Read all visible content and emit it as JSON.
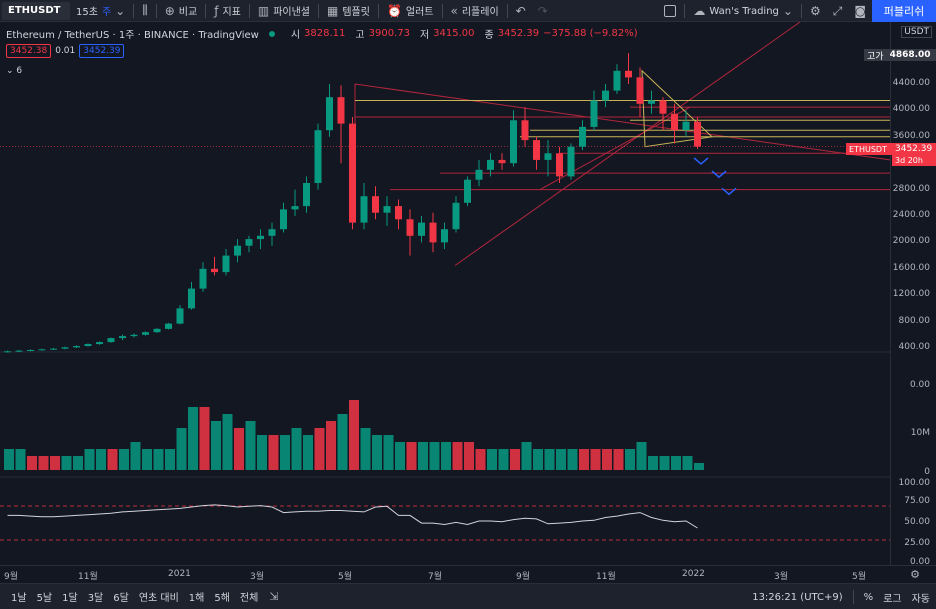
{
  "toolbar": {
    "symbol": "ETHUSDT",
    "interval": "15초",
    "interval_extra": "주",
    "compare": "비교",
    "indicators": "지표",
    "financials": "파이낸셜",
    "templates": "템플릿",
    "alert": "얼러트",
    "replay": "리플레이",
    "layout_name": "Wan's Trading",
    "publish": "퍼블리쉬"
  },
  "legend": {
    "title": "Ethereum / TetherUS · 1주 · BINANCE · TradingView",
    "open_label": "시",
    "open": "3828.11",
    "high_label": "고",
    "high": "3900.73",
    "low_label": "저",
    "low": "3415.00",
    "close_label": "종",
    "close": "3452.39",
    "change": "−375.88 (−9.82%)",
    "bid": "3452.38",
    "spread": "0.01",
    "ask": "3452.39",
    "indicator_count": "6"
  },
  "price_axis": {
    "currency": "USDT",
    "labels": [
      "4400.00",
      "4000.00",
      "3600.00",
      "3200.00",
      "2800.00",
      "2400.00",
      "2000.00",
      "1600.00",
      "1200.00",
      "800.00",
      "400.00"
    ],
    "high_tag_label": "고가",
    "high_tag_value": "4868.00",
    "symbol_tag": "ETHUSDT",
    "last_price": "3452.39",
    "countdown": "3d 20h",
    "vol_labels": [
      "0.00",
      "10M",
      "0"
    ],
    "rsi_labels": [
      "100.00",
      "75.00",
      "50.00",
      "25.00",
      "0.00"
    ]
  },
  "time_axis": {
    "labels": [
      "9월",
      "11월",
      "2021",
      "3월",
      "5월",
      "7월",
      "9월",
      "11월",
      "2022",
      "3월",
      "5월"
    ]
  },
  "bottom": {
    "ranges": [
      "1날",
      "5날",
      "1달",
      "3달",
      "6달",
      "연초 대비",
      "1해",
      "5해",
      "전체"
    ],
    "time": "13:26:21 (UTC+9)",
    "percent": "%",
    "log": "로그",
    "auto": "자동"
  },
  "colors": {
    "up": "#089981",
    "down": "#f23645",
    "accent": "#2962ff",
    "line_yellow": "#c9b458",
    "line_red": "#b2263c"
  },
  "chart_data": {
    "type": "candlestick",
    "symbol": "ETHUSDT",
    "interval": "1주",
    "ylim": [
      0,
      4800
    ],
    "candles": [
      [
        340,
        360,
        330,
        350
      ],
      [
        350,
        370,
        340,
        360
      ],
      [
        360,
        380,
        350,
        370
      ],
      [
        370,
        390,
        360,
        380
      ],
      [
        380,
        400,
        370,
        390
      ],
      [
        390,
        420,
        380,
        410
      ],
      [
        410,
        440,
        400,
        430
      ],
      [
        430,
        470,
        420,
        460
      ],
      [
        460,
        500,
        450,
        490
      ],
      [
        490,
        560,
        480,
        550
      ],
      [
        550,
        600,
        520,
        580
      ],
      [
        580,
        620,
        560,
        600
      ],
      [
        600,
        650,
        590,
        640
      ],
      [
        640,
        700,
        630,
        690
      ],
      [
        690,
        780,
        680,
        770
      ],
      [
        770,
        1050,
        760,
        1000
      ],
      [
        1000,
        1400,
        980,
        1300
      ],
      [
        1300,
        1700,
        1250,
        1600
      ],
      [
        1600,
        1780,
        1500,
        1550
      ],
      [
        1550,
        1900,
        1500,
        1800
      ],
      [
        1800,
        2050,
        1700,
        1950
      ],
      [
        1950,
        2100,
        1850,
        2050
      ],
      [
        2050,
        2200,
        1900,
        2100
      ],
      [
        2100,
        2300,
        1950,
        2200
      ],
      [
        2200,
        2600,
        2150,
        2500
      ],
      [
        2500,
        2800,
        2400,
        2550
      ],
      [
        2550,
        3000,
        2450,
        2900
      ],
      [
        2900,
        3800,
        2800,
        3700
      ],
      [
        3700,
        4400,
        3600,
        4200
      ],
      [
        4200,
        4380,
        3200,
        3800
      ],
      [
        3800,
        3900,
        2200,
        2300
      ],
      [
        2300,
        2900,
        2200,
        2700
      ],
      [
        2700,
        2850,
        2350,
        2450
      ],
      [
        2450,
        2700,
        2250,
        2550
      ],
      [
        2550,
        2650,
        2200,
        2350
      ],
      [
        2350,
        2500,
        1800,
        2100
      ],
      [
        2100,
        2400,
        2000,
        2300
      ],
      [
        2300,
        2450,
        1850,
        2000
      ],
      [
        2000,
        2300,
        1900,
        2200
      ],
      [
        2200,
        2700,
        2150,
        2600
      ],
      [
        2600,
        3000,
        2550,
        2950
      ],
      [
        2950,
        3250,
        2850,
        3100
      ],
      [
        3100,
        3350,
        3000,
        3250
      ],
      [
        3250,
        3350,
        3100,
        3200
      ],
      [
        3200,
        4000,
        3150,
        3850
      ],
      [
        3850,
        4050,
        3450,
        3550
      ],
      [
        3550,
        3600,
        3100,
        3250
      ],
      [
        3250,
        3550,
        3000,
        3350
      ],
      [
        3350,
        3450,
        2900,
        3000
      ],
      [
        3000,
        3500,
        2950,
        3450
      ],
      [
        3450,
        3850,
        3400,
        3750
      ],
      [
        3750,
        4300,
        3700,
        4150
      ],
      [
        4150,
        4400,
        4050,
        4300
      ],
      [
        4300,
        4700,
        4250,
        4600
      ],
      [
        4600,
        4868,
        4400,
        4500
      ],
      [
        4500,
        4650,
        3900,
        4100
      ],
      [
        4100,
        4300,
        3950,
        4150
      ],
      [
        4150,
        4200,
        3700,
        3950
      ],
      [
        3950,
        4100,
        3500,
        3700
      ],
      [
        3700,
        4000,
        3600,
        3828
      ],
      [
        3828,
        3900,
        3415,
        3452
      ]
    ],
    "volume": [
      [
        3,
        1
      ],
      [
        3,
        1
      ],
      [
        2,
        0
      ],
      [
        2,
        0
      ],
      [
        2,
        0
      ],
      [
        2,
        1
      ],
      [
        2,
        1
      ],
      [
        3,
        1
      ],
      [
        3,
        1
      ],
      [
        3,
        0
      ],
      [
        3,
        1
      ],
      [
        4,
        1
      ],
      [
        3,
        1
      ],
      [
        3,
        1
      ],
      [
        3,
        1
      ],
      [
        6,
        1
      ],
      [
        9,
        1
      ],
      [
        9,
        0
      ],
      [
        7,
        1
      ],
      [
        8,
        1
      ],
      [
        6,
        0
      ],
      [
        7,
        1
      ],
      [
        5,
        1
      ],
      [
        5,
        0
      ],
      [
        5,
        1
      ],
      [
        6,
        1
      ],
      [
        5,
        1
      ],
      [
        6,
        0
      ],
      [
        7,
        0
      ],
      [
        8,
        1
      ],
      [
        10,
        0
      ],
      [
        6,
        1
      ],
      [
        5,
        1
      ],
      [
        5,
        1
      ],
      [
        4,
        1
      ],
      [
        4,
        0
      ],
      [
        4,
        1
      ],
      [
        4,
        1
      ],
      [
        4,
        1
      ],
      [
        4,
        0
      ],
      [
        4,
        0
      ],
      [
        3,
        0
      ],
      [
        3,
        1
      ],
      [
        3,
        1
      ],
      [
        3,
        0
      ],
      [
        4,
        1
      ],
      [
        3,
        1
      ],
      [
        3,
        1
      ],
      [
        3,
        1
      ],
      [
        3,
        1
      ],
      [
        3,
        0
      ],
      [
        3,
        0
      ],
      [
        3,
        0
      ],
      [
        3,
        0
      ],
      [
        3,
        1
      ],
      [
        4,
        1
      ],
      [
        2,
        1
      ],
      [
        2,
        1
      ],
      [
        2,
        1
      ],
      [
        2,
        1
      ],
      [
        1,
        1
      ]
    ],
    "rsi": [
      68,
      68,
      67,
      66,
      66,
      67,
      68,
      69,
      70,
      71,
      73,
      74,
      75,
      76,
      77,
      78,
      80,
      82,
      83,
      82,
      80,
      81,
      82,
      80,
      72,
      73,
      74,
      74,
      75,
      75,
      74,
      73,
      80,
      81,
      68,
      68,
      57,
      57,
      55,
      58,
      55,
      60,
      60,
      59,
      62,
      64,
      63,
      56,
      57,
      58,
      60,
      61,
      65,
      67,
      70,
      72,
      65,
      61,
      59,
      60,
      50
    ]
  }
}
